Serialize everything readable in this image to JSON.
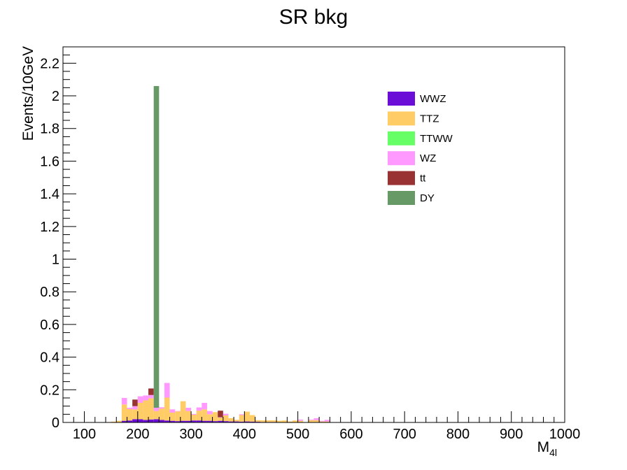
{
  "chart_data": {
    "type": "bar",
    "stacked": true,
    "title": "SR bkg",
    "ylabel": "Events/10GeV",
    "xlabel_main": "M",
    "xlabel_sub": "4l",
    "xlim": [
      60,
      1000
    ],
    "ylim": [
      0,
      2.3
    ],
    "bin_width": 10,
    "x": [
      150,
      160,
      170,
      180,
      190,
      200,
      210,
      220,
      230,
      240,
      250,
      260,
      270,
      280,
      290,
      300,
      310,
      320,
      330,
      340,
      350,
      360,
      370,
      380,
      390,
      400,
      410,
      420,
      430,
      440,
      450,
      460,
      470,
      480,
      490,
      500,
      510,
      520,
      530,
      540,
      550,
      560,
      570,
      580,
      590,
      600,
      610,
      620,
      630,
      640,
      650,
      660,
      670,
      680,
      690,
      700,
      710,
      720,
      730,
      740,
      750,
      760,
      770,
      780,
      790,
      800,
      810,
      820,
      830,
      840,
      850,
      860,
      870,
      880,
      890,
      900,
      910,
      920,
      930,
      940,
      950,
      960,
      970,
      980,
      990
    ],
    "x_ticks": [
      100,
      200,
      300,
      400,
      500,
      600,
      700,
      800,
      900,
      1000
    ],
    "y_ticks": [
      0,
      0.2,
      0.4,
      0.6,
      0.8,
      1,
      1.2,
      1.4,
      1.6,
      1.8,
      2,
      2.2
    ],
    "x_tick_labels": [
      "100",
      "200",
      "300",
      "400",
      "500",
      "600",
      "700",
      "800",
      "900",
      "1000"
    ],
    "y_tick_labels": [
      "0",
      "0.2",
      "0.4",
      "0.6",
      "0.8",
      "1",
      "1.2",
      "1.4",
      "1.6",
      "1.8",
      "2",
      "2.2"
    ],
    "legend_position": "top-right",
    "series": [
      {
        "name": "WWZ",
        "color": "#6a0dd6",
        "values": [
          0,
          0,
          0.01,
          0.012,
          0.02,
          0.02,
          0.015,
          0.018,
          0.02,
          0.015,
          0.012,
          0.01,
          0.008,
          0.01,
          0.01,
          0.012,
          0.012,
          0.01,
          0.01,
          0.008,
          0.01,
          0.008,
          0.006,
          0.006,
          0.005,
          0.006,
          0.005,
          0.004,
          0.003,
          0.003,
          0.003,
          0.002,
          0.002,
          0.002,
          0.002,
          0.002,
          0.002,
          0.002,
          0.002,
          0.002,
          0.002,
          0,
          0,
          0,
          0,
          0,
          0,
          0,
          0,
          0,
          0,
          0,
          0,
          0,
          0,
          0,
          0,
          0,
          0,
          0,
          0,
          0,
          0,
          0,
          0,
          0,
          0,
          0.002,
          0,
          0,
          0,
          0,
          0,
          0,
          0,
          0,
          0,
          0,
          0,
          0,
          0,
          0,
          0,
          0,
          0
        ]
      },
      {
        "name": "TTZ",
        "color": "#ffcc66",
        "values": [
          0.005,
          0.01,
          0.1,
          0.07,
          0.06,
          0.1,
          0.12,
          0.13,
          0.05,
          0.07,
          0.14,
          0.05,
          0.06,
          0.12,
          0.06,
          0.035,
          0.06,
          0.07,
          0.04,
          0.055,
          0.02,
          0.035,
          0.02,
          0.01,
          0.04,
          0.06,
          0.04,
          0.01,
          0.01,
          0.01,
          0.01,
          0.008,
          0.01,
          0.004,
          0.01,
          0.008,
          0,
          0.012,
          0.012,
          0.004,
          0.004,
          0,
          0,
          0,
          0,
          0,
          0,
          0,
          0,
          0,
          0,
          0,
          0,
          0,
          0,
          0,
          0,
          0,
          0,
          0,
          0,
          0,
          0,
          0,
          0,
          0,
          0,
          0,
          0,
          0,
          0,
          0,
          0,
          0,
          0,
          0,
          0,
          0,
          0,
          0,
          0,
          0,
          0,
          0,
          0
        ]
      },
      {
        "name": "TTWW",
        "color": "#66ff66",
        "values": [
          0,
          0,
          0,
          0,
          0,
          0,
          0,
          0,
          0,
          0,
          0,
          0,
          0,
          0,
          0,
          0,
          0,
          0,
          0,
          0,
          0,
          0,
          0,
          0,
          0,
          0,
          0,
          0,
          0,
          0,
          0,
          0,
          0,
          0,
          0,
          0,
          0,
          0,
          0,
          0,
          0,
          0,
          0,
          0,
          0,
          0,
          0,
          0,
          0,
          0,
          0,
          0,
          0,
          0,
          0,
          0,
          0,
          0,
          0,
          0,
          0,
          0,
          0,
          0,
          0,
          0,
          0,
          0,
          0,
          0,
          0,
          0,
          0,
          0,
          0,
          0,
          0,
          0,
          0,
          0,
          0,
          0,
          0,
          0,
          0
        ]
      },
      {
        "name": "WZ",
        "color": "#ff99ff",
        "values": [
          0,
          0,
          0.04,
          0.008,
          0.02,
          0.04,
          0.03,
          0.02,
          0.02,
          0.008,
          0.09,
          0.02,
          0.002,
          0,
          0.02,
          0.005,
          0.02,
          0.04,
          0.02,
          0,
          0.002,
          0.01,
          0,
          0,
          0.005,
          0,
          0,
          0,
          0,
          0,
          0,
          0,
          0,
          0,
          0,
          0.008,
          0,
          0.004,
          0.012,
          0.004,
          0.01,
          0,
          0,
          0,
          0,
          0,
          0,
          0,
          0,
          0,
          0,
          0,
          0,
          0,
          0,
          0,
          0,
          0,
          0,
          0,
          0,
          0,
          0,
          0,
          0,
          0,
          0,
          0,
          0,
          0,
          0,
          0,
          0,
          0,
          0,
          0,
          0,
          0,
          0,
          0,
          0,
          0,
          0,
          0,
          0
        ]
      },
      {
        "name": "tt",
        "color": "#993333",
        "values": [
          0,
          0,
          0,
          0,
          0.04,
          0,
          0,
          0.04,
          0,
          0,
          0,
          0,
          0,
          0,
          0,
          0,
          0,
          0,
          0,
          0,
          0.04,
          0,
          0,
          0,
          0,
          0,
          0,
          0,
          0,
          0,
          0,
          0,
          0,
          0,
          0,
          0,
          0,
          0,
          0,
          0,
          0,
          0,
          0,
          0,
          0,
          0,
          0,
          0,
          0,
          0,
          0,
          0,
          0,
          0,
          0,
          0,
          0,
          0,
          0,
          0,
          0,
          0,
          0,
          0,
          0,
          0,
          0,
          0,
          0,
          0,
          0,
          0,
          0,
          0,
          0,
          0,
          0,
          0,
          0,
          0,
          0,
          0,
          0,
          0,
          0
        ]
      },
      {
        "name": "DY",
        "color": "#669966",
        "values": [
          0,
          0,
          0,
          0,
          0,
          0,
          0,
          0,
          1.97,
          0,
          0,
          0,
          0,
          0,
          0,
          0,
          0,
          0,
          0,
          0,
          0,
          0,
          0,
          0,
          0,
          0,
          0,
          0,
          0,
          0,
          0,
          0,
          0,
          0,
          0,
          0,
          0,
          0,
          0,
          0,
          0,
          0,
          0,
          0,
          0,
          0,
          0,
          0,
          0,
          0,
          0,
          0,
          0,
          0,
          0,
          0,
          0,
          0,
          0,
          0,
          0,
          0,
          0,
          0,
          0,
          0,
          0,
          0,
          0,
          0,
          0,
          0,
          0,
          0,
          0,
          0,
          0,
          0,
          0,
          0,
          0,
          0,
          0,
          0,
          0
        ]
      }
    ]
  }
}
